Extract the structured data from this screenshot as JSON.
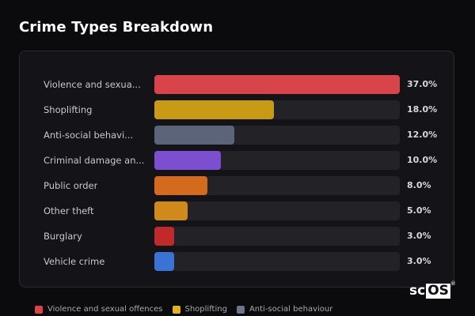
{
  "page": {
    "title": "Crime Types Breakdown"
  },
  "chart_data": {
    "type": "bar",
    "orientation": "horizontal",
    "xlim": [
      0,
      37
    ],
    "categories": [
      "Violence and sexua...",
      "Shoplifting",
      "Anti-social behavi...",
      "Criminal damage an...",
      "Public order",
      "Other theft",
      "Burglary",
      "Vehicle crime"
    ],
    "values": [
      37.0,
      18.0,
      12.0,
      10.0,
      8.0,
      5.0,
      3.0,
      3.0
    ],
    "value_labels": [
      "37.0%",
      "18.0%",
      "12.0%",
      "10.0%",
      "8.0%",
      "5.0%",
      "3.0%",
      "3.0%"
    ],
    "colors": [
      "#d9434a",
      "#c99a16",
      "#5b6478",
      "#7b4fd0",
      "#d46a1e",
      "#cf8a1b",
      "#c02a2a",
      "#3a73d4"
    ],
    "legend": {
      "placement": "bottom-left",
      "entries": [
        {
          "label": "Violence and sexual offences",
          "color": "#d9434a"
        },
        {
          "label": "Shoplifting",
          "color": "#e0b223"
        },
        {
          "label": "Anti-social behaviour",
          "color": "#6b7488"
        }
      ]
    }
  },
  "logo": {
    "prefix": "sc",
    "boxed": "OS",
    "mark": "®"
  }
}
